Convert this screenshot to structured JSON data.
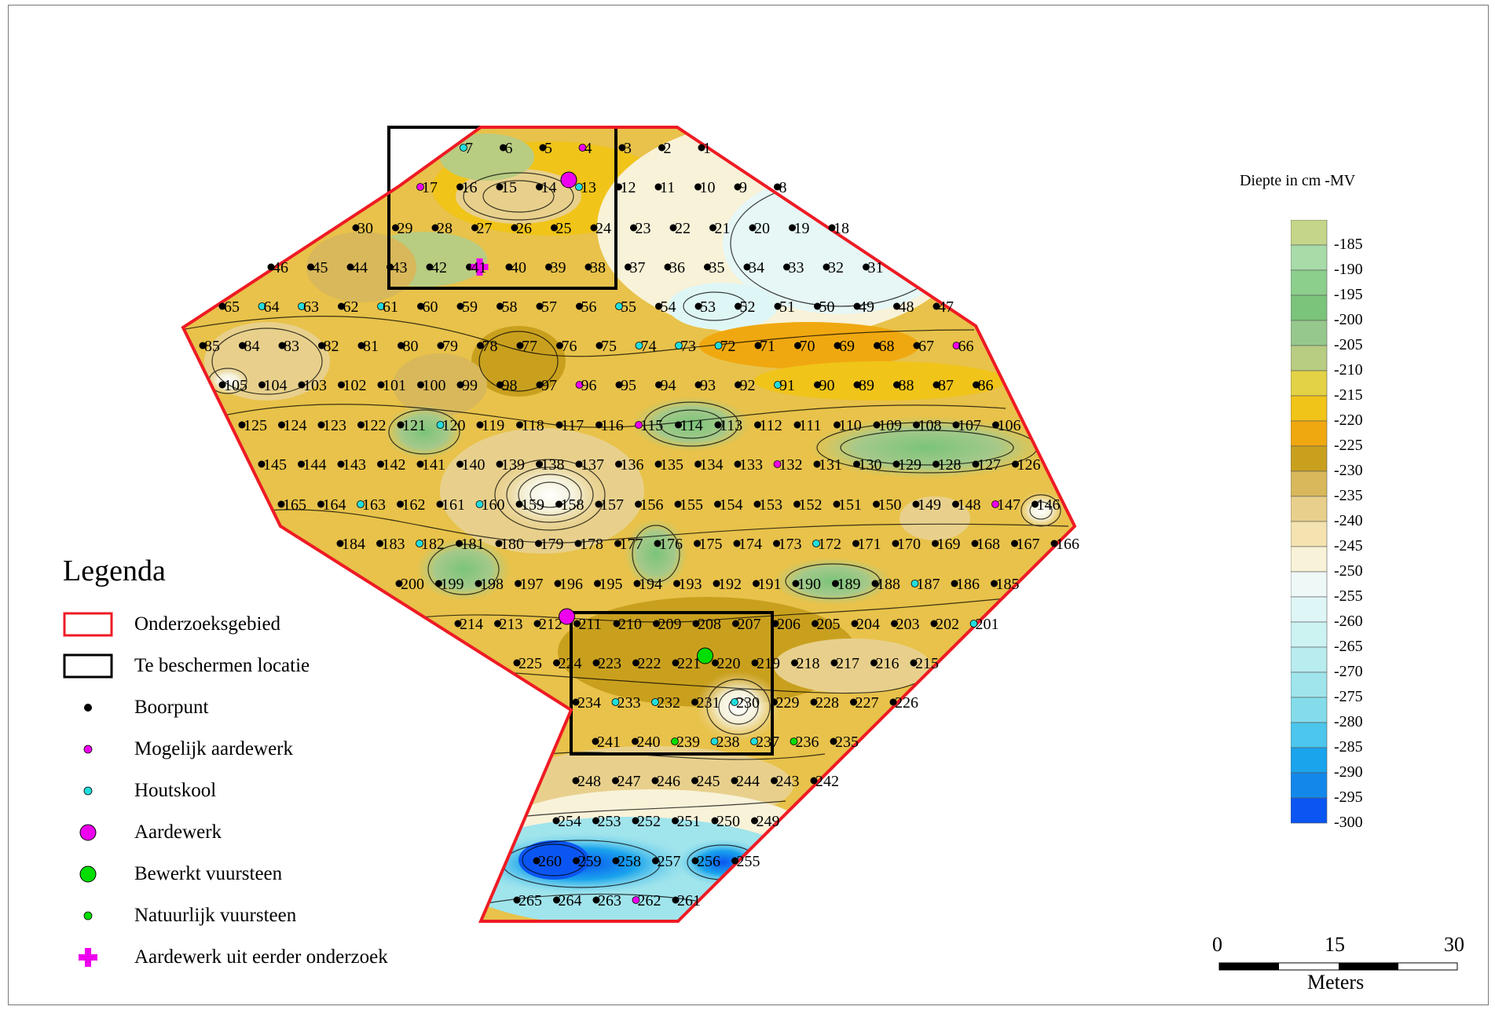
{
  "scale_bar_legend": {
    "title": "Diepte in cm -MV",
    "classes": [
      {
        "label": "-185",
        "color": "#c5d68a"
      },
      {
        "label": "-190",
        "color": "#a8dba8"
      },
      {
        "label": "-195",
        "color": "#8ccf8c"
      },
      {
        "label": "-200",
        "color": "#7bc47b"
      },
      {
        "label": "-205",
        "color": "#96c88d"
      },
      {
        "label": "-210",
        "color": "#b8cc82"
      },
      {
        "label": "-215",
        "color": "#e3d245"
      },
      {
        "label": "-220",
        "color": "#f0c419"
      },
      {
        "label": "-225",
        "color": "#f0a810"
      },
      {
        "label": "-230",
        "color": "#c9a01e"
      },
      {
        "label": "-235",
        "color": "#d8b85a"
      },
      {
        "label": "-240",
        "color": "#e8d08c"
      },
      {
        "label": "-245",
        "color": "#f4e2b0"
      },
      {
        "label": "-250",
        "color": "#f8f2d8"
      },
      {
        "label": "-255",
        "color": "#eef8f6"
      },
      {
        "label": "-260",
        "color": "#dff6f6"
      },
      {
        "label": "-265",
        "color": "#ccf2f2"
      },
      {
        "label": "-270",
        "color": "#b8ecee"
      },
      {
        "label": "-275",
        "color": "#a0e4ec"
      },
      {
        "label": "-280",
        "color": "#84dcea"
      },
      {
        "label": "-285",
        "color": "#4cc6ec"
      },
      {
        "label": "-290",
        "color": "#1aa4ec"
      },
      {
        "label": "-295",
        "color": "#1488ea"
      },
      {
        "label": "-300",
        "color": "#0b56f2"
      }
    ]
  },
  "legend": {
    "title": "Legenda",
    "items": [
      {
        "label": "Onderzoeksgebied",
        "symbol": "red-rect"
      },
      {
        "label": "Te beschermen locatie",
        "symbol": "black-rect"
      },
      {
        "label": "Boorpunt",
        "symbol": "black-dot"
      },
      {
        "label": "Mogelijk aardewerk",
        "symbol": "small-magenta-dot"
      },
      {
        "label": "Houtskool",
        "symbol": "small-cyan-dot"
      },
      {
        "label": "Aardewerk",
        "symbol": "big-magenta-dot"
      },
      {
        "label": "Bewerkt vuursteen",
        "symbol": "big-green-dot"
      },
      {
        "label": "Natuurlijk vuursteen",
        "symbol": "small-green-dot"
      },
      {
        "label": "Aardewerk uit eerder onderzoek",
        "symbol": "magenta-plus"
      }
    ]
  },
  "scale_bar": {
    "labels": [
      "0",
      "15",
      "30"
    ],
    "unit": "Meters"
  },
  "colors": {
    "study_area": "#ee1b24",
    "protected": "#000000",
    "boorpunt": "#000000",
    "magenta": "#ee00ee",
    "cyan": "#22dddd",
    "green": "#00dd00"
  },
  "points": {
    "rows": [
      {
        "start": 7,
        "end": 1
      },
      {
        "start": 17,
        "end": 8
      },
      {
        "start": 30,
        "end": 18
      },
      {
        "start": 46,
        "end": 31
      },
      {
        "start": 65,
        "end": 47
      },
      {
        "start": 85,
        "end": 66
      },
      {
        "start": 105,
        "end": 86
      },
      {
        "start": 125,
        "end": 106
      },
      {
        "start": 145,
        "end": 126
      },
      {
        "start": 165,
        "end": 146
      },
      {
        "start": 184,
        "end": 166
      },
      {
        "start": 200,
        "end": 185
      },
      {
        "start": 214,
        "end": 201
      },
      {
        "start": 225,
        "end": 215
      },
      {
        "start": 234,
        "end": 226
      },
      {
        "start": 241,
        "end": 235
      },
      {
        "start": 248,
        "end": 242
      },
      {
        "start": 254,
        "end": 249
      },
      {
        "start": 260,
        "end": 255
      },
      {
        "start": 265,
        "end": 261
      }
    ],
    "mogelijk_aardewerk": [
      4,
      17,
      66,
      96,
      115,
      132,
      147,
      262
    ],
    "houtskool": [
      7,
      13,
      17,
      55,
      61,
      63,
      64,
      72,
      73,
      74,
      91,
      120,
      160,
      163,
      172,
      182,
      187,
      201,
      230,
      232,
      233,
      237,
      238
    ],
    "aardewerk": [
      13,
      211
    ],
    "bewerkt_vuursteen": [
      220
    ],
    "natuurlijk_vuursteen": [
      236,
      239
    ],
    "aardewerk_eerder": [
      41
    ]
  }
}
